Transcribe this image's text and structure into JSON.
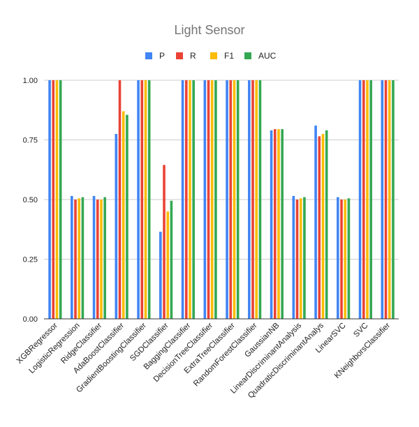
{
  "chart_data": {
    "type": "bar",
    "title": "Light Sensor",
    "xlabel": "",
    "ylabel": "",
    "ylim": [
      0,
      1
    ],
    "yticks": [
      "0.00",
      "0.25",
      "0.50",
      "0.75",
      "1.00"
    ],
    "grid": true,
    "legend_position": "top",
    "categories": [
      "XGBRegressor",
      "LogisticRegression",
      "RidgeClassifier",
      "AdaBoostClassifier",
      "GradientBoostingClassifier",
      "SGDClassifier",
      "BaggingClassifier",
      "DecisionTreeClassifier",
      "ExtraTreeClassifier",
      "RandomForestClassifier",
      "GaussianNB",
      "LinearDiscriminantAnalysis",
      "QuadraticDiscriminantAnalys",
      "LinearSVC",
      "SVC",
      "KNeighborsClassifier"
    ],
    "series": [
      {
        "name": "P",
        "color": "#4285f4",
        "values": [
          1.0,
          0.515,
          0.515,
          0.775,
          1.0,
          0.365,
          1.0,
          1.0,
          1.0,
          1.0,
          0.79,
          0.515,
          0.81,
          0.51,
          1.0,
          1.0
        ]
      },
      {
        "name": "R",
        "color": "#ea4335",
        "values": [
          1.0,
          0.5,
          0.5,
          1.0,
          1.0,
          0.645,
          1.0,
          1.0,
          1.0,
          1.0,
          0.795,
          0.5,
          0.765,
          0.5,
          1.0,
          1.0
        ]
      },
      {
        "name": "F1",
        "color": "#fbbc04",
        "values": [
          1.0,
          0.505,
          0.5,
          0.87,
          1.0,
          0.45,
          1.0,
          1.0,
          1.0,
          1.0,
          0.795,
          0.505,
          0.775,
          0.5,
          1.0,
          1.0
        ]
      },
      {
        "name": "AUC",
        "color": "#34a853",
        "values": [
          1.0,
          0.51,
          0.51,
          0.855,
          1.0,
          0.495,
          1.0,
          1.0,
          1.0,
          1.0,
          0.795,
          0.51,
          0.79,
          0.505,
          1.0,
          1.0
        ]
      }
    ]
  }
}
